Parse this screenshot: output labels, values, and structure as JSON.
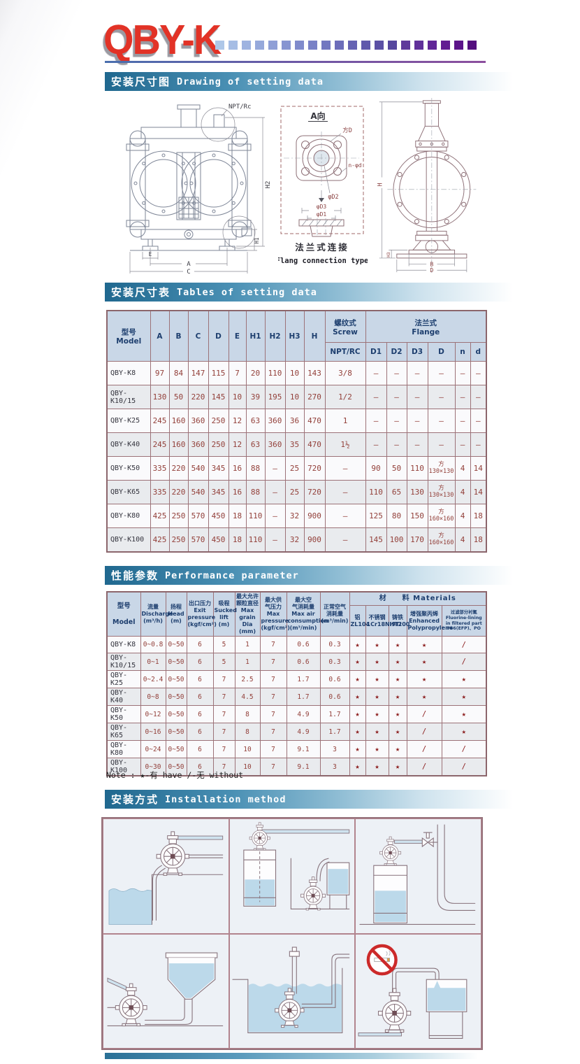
{
  "brand": {
    "logo": "QBY-K",
    "accent_red": "#e23226",
    "square_colors": [
      "#aec7e8",
      "#a6bde4",
      "#9eb3e0",
      "#96a9db",
      "#8f9fd6",
      "#8795d1",
      "#808bcc",
      "#7981c6",
      "#7277c0",
      "#6c6dba",
      "#6663b3",
      "#6059ac",
      "#5b50a5",
      "#56479e",
      "#5f3a9b",
      "#60309a",
      "#612697",
      "#621d92",
      "#5c148a",
      "#540e7e"
    ]
  },
  "sections": {
    "drawing": {
      "zh": "安装尺寸图",
      "en": "Drawing of setting data"
    },
    "dims": {
      "zh": "安装尺寸表",
      "en": "Tables of setting data"
    },
    "perf": {
      "zh": "性能参数",
      "en": "Performance parameter"
    },
    "install": {
      "zh": "安装方式",
      "en": "Installation method"
    }
  },
  "drawing": {
    "front": {
      "npt": "NPT/Rc",
      "h2": "H2",
      "h1": "H1",
      "e": "E",
      "a": "A",
      "c": "C"
    },
    "flange": {
      "view": "A向",
      "fd": "方D",
      "nd": "n-φd",
      "d2": "φD2",
      "d3": "φD3",
      "d1": "φD1",
      "cap_zh": "法兰式连接",
      "cap_en": "Flang connection type"
    },
    "side": {
      "h": "H",
      "h3": "H3",
      "b": "B",
      "d": "D"
    }
  },
  "dim_table": {
    "header": {
      "model": "型号\nModel",
      "cols": [
        "A",
        "B",
        "C",
        "D",
        "E",
        "H1",
        "H2",
        "H3",
        "H"
      ],
      "screw": "螺纹式\nScrew",
      "npt": "NPT/RC",
      "flange": "法兰式\nFlange",
      "flange_cols": [
        "D1",
        "D2",
        "D3",
        "D",
        "n",
        "d"
      ]
    },
    "rows": [
      {
        "model": "QBY-K8",
        "values": [
          "97",
          "84",
          "147",
          "115",
          "7",
          "20",
          "110",
          "10",
          "143",
          "3/8",
          "–",
          "–",
          "–",
          "–",
          "–",
          "–"
        ]
      },
      {
        "model": "QBY-K10/15",
        "values": [
          "130",
          "50",
          "220",
          "145",
          "10",
          "39",
          "195",
          "10",
          "270",
          "1/2",
          "–",
          "–",
          "–",
          "–",
          "–",
          "–"
        ]
      },
      {
        "model": "QBY-K25",
        "values": [
          "245",
          "160",
          "360",
          "250",
          "12",
          "63",
          "360",
          "36",
          "470",
          "1",
          "–",
          "–",
          "–",
          "–",
          "–",
          "–"
        ]
      },
      {
        "model": "QBY-K40",
        "values": [
          "245",
          "160",
          "360",
          "250",
          "12",
          "63",
          "360",
          "35",
          "470",
          "1½",
          "–",
          "–",
          "–",
          "–",
          "–",
          "–"
        ]
      },
      {
        "model": "QBY-K50",
        "values": [
          "335",
          "220",
          "540",
          "345",
          "16",
          "88",
          "–",
          "25",
          "720",
          "–",
          "90",
          "50",
          "110",
          "方\n130×130",
          "4",
          "14"
        ]
      },
      {
        "model": "QBY-K65",
        "values": [
          "335",
          "220",
          "540",
          "345",
          "16",
          "88",
          "–",
          "25",
          "720",
          "–",
          "110",
          "65",
          "130",
          "方\n130×130",
          "4",
          "14"
        ]
      },
      {
        "model": "QBY-K80",
        "values": [
          "425",
          "250",
          "570",
          "450",
          "18",
          "110",
          "–",
          "32",
          "900",
          "–",
          "125",
          "80",
          "150",
          "方\n160×160",
          "4",
          "18"
        ]
      },
      {
        "model": "QBY-K100",
        "values": [
          "425",
          "250",
          "570",
          "450",
          "18",
          "110",
          "–",
          "32",
          "900",
          "–",
          "145",
          "100",
          "170",
          "方\n160×160",
          "4",
          "18"
        ]
      }
    ]
  },
  "performance": {
    "header": {
      "model": "型号\n\nModel",
      "params": [
        "流量\nDischarge\n(m³/h)",
        "扬程\nHead\n(m)",
        "出口压力\nExit\npressure\n(kgf/cm²)",
        "吸程\nSucked\nlift\n(m)",
        "最大允许\n颗粒直径\nMax grain\nDia\n(mm)",
        "最大供\n气压力\nMax\npressure\n(kgf/cm²)",
        "最大空\n气消耗量\nMax air\nconsumption\n(m³/min)",
        "正常空气\n消耗量\n(m³/min)"
      ],
      "materials_title": "材　　料  Materials",
      "materials": [
        "铝\nZL104",
        "不锈钢\n1Cr18Ni9Ti",
        "铸铁\nHT200",
        "增强聚丙烯\nEnhanced\nPolypropylene",
        "过滤部分衬氟\nFluorine-lining in filtered part\nF46(EFP)、PO"
      ]
    },
    "rows": [
      {
        "model": "QBY-K8",
        "values": [
          "0~0.8",
          "0~50",
          "6",
          "5",
          "1",
          "7",
          "0.6",
          "0.3",
          "★",
          "★",
          "★",
          "★",
          "/"
        ]
      },
      {
        "model": "QBY-K10/15",
        "values": [
          "0~1",
          "0~50",
          "6",
          "5",
          "1",
          "7",
          "0.6",
          "0.3",
          "★",
          "★",
          "★",
          "★",
          "/"
        ]
      },
      {
        "model": "QBY-K25",
        "values": [
          "0~2.4",
          "0~50",
          "6",
          "7",
          "2.5",
          "7",
          "1.7",
          "0.6",
          "★",
          "★",
          "★",
          "★",
          "★"
        ]
      },
      {
        "model": "QBY-K40",
        "values": [
          "0~8",
          "0~50",
          "6",
          "7",
          "4.5",
          "7",
          "1.7",
          "0.6",
          "★",
          "★",
          "★",
          "★",
          "★"
        ]
      },
      {
        "model": "QBY-K50",
        "values": [
          "0~12",
          "0~50",
          "6",
          "7",
          "8",
          "7",
          "4.9",
          "1.7",
          "★",
          "★",
          "★",
          "/",
          "★"
        ]
      },
      {
        "model": "QBY-K65",
        "values": [
          "0~16",
          "0~50",
          "6",
          "7",
          "8",
          "7",
          "4.9",
          "1.7",
          "★",
          "★",
          "★",
          "/",
          "★"
        ]
      },
      {
        "model": "QBY-K80",
        "values": [
          "0~24",
          "0~50",
          "6",
          "7",
          "10",
          "7",
          "9.1",
          "3",
          "★",
          "★",
          "★",
          "/",
          "/"
        ]
      },
      {
        "model": "QBY-K100",
        "values": [
          "0~30",
          "0~50",
          "6",
          "7",
          "10",
          "7",
          "9.1",
          "3",
          "★",
          "★",
          "★",
          "/",
          "/"
        ]
      }
    ],
    "note": "Note : ★-有 have    /-无 without"
  }
}
